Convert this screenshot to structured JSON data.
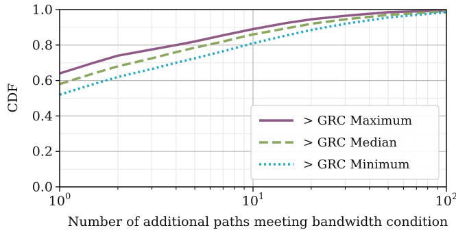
{
  "chart_data": {
    "type": "line",
    "xscale": "log",
    "xlim": [
      1,
      100
    ],
    "ylim": [
      0.0,
      1.0
    ],
    "grid": true,
    "xlabel": "Number of additional paths meeting bandwidth condition",
    "ylabel": "CDF",
    "x_ticks": [
      {
        "value": 1,
        "base": "10",
        "exp": "0"
      },
      {
        "value": 10,
        "base": "10",
        "exp": "1"
      },
      {
        "value": 100,
        "base": "10",
        "exp": "2"
      }
    ],
    "y_ticks": [
      {
        "value": 0.0,
        "label": "0.0"
      },
      {
        "value": 0.2,
        "label": "0.2"
      },
      {
        "value": 0.4,
        "label": "0.4"
      },
      {
        "value": 0.6,
        "label": "0.6"
      },
      {
        "value": 0.8,
        "label": "0.8"
      },
      {
        "value": 1.0,
        "label": "1.0"
      }
    ],
    "legend_position": "lower-right",
    "series": [
      {
        "name": "> GRC Maximum",
        "color": "#8e5b87",
        "style": "solid",
        "x": [
          1,
          1.5,
          2,
          3,
          4,
          5,
          7,
          10,
          15,
          20,
          30,
          50,
          70,
          100
        ],
        "y": [
          0.64,
          0.7,
          0.74,
          0.775,
          0.8,
          0.82,
          0.855,
          0.89,
          0.925,
          0.945,
          0.965,
          0.985,
          0.99,
          0.995
        ]
      },
      {
        "name": "> GRC Median",
        "color": "#8aa860",
        "style": "dashed",
        "x": [
          1,
          1.5,
          2,
          3,
          4,
          5,
          7,
          10,
          15,
          20,
          30,
          50,
          70,
          100
        ],
        "y": [
          0.58,
          0.64,
          0.68,
          0.725,
          0.76,
          0.785,
          0.82,
          0.86,
          0.895,
          0.92,
          0.945,
          0.97,
          0.98,
          0.99
        ]
      },
      {
        "name": "> GRC Minimum",
        "color": "#29a8c8",
        "style": "dotted",
        "x": [
          1,
          1.5,
          2,
          3,
          4,
          5,
          7,
          10,
          15,
          20,
          30,
          50,
          70,
          100
        ],
        "y": [
          0.52,
          0.58,
          0.62,
          0.665,
          0.7,
          0.725,
          0.765,
          0.81,
          0.855,
          0.885,
          0.92,
          0.955,
          0.97,
          0.985
        ]
      }
    ]
  }
}
